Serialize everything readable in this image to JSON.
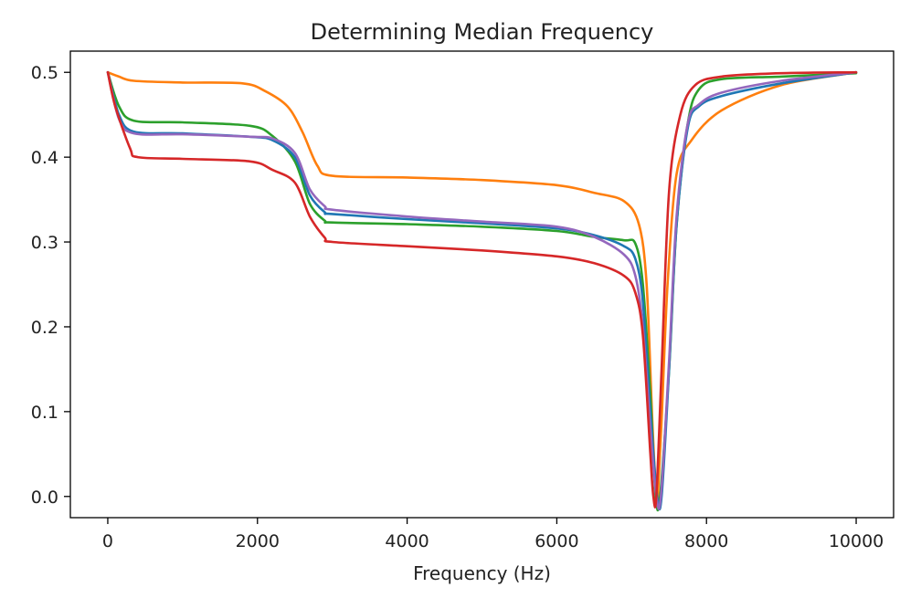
{
  "chart_data": {
    "type": "line",
    "title": "Determining Median Frequency",
    "xlabel": "Frequency (Hz)",
    "ylabel": "",
    "xlim": [
      -500,
      10500
    ],
    "ylim": [
      -0.025,
      0.525
    ],
    "xticks": [
      0,
      2000,
      4000,
      6000,
      8000,
      10000
    ],
    "xtick_labels": [
      "0",
      "2000",
      "4000",
      "6000",
      "8000",
      "10000"
    ],
    "yticks": [
      0.0,
      0.1,
      0.2,
      0.3,
      0.4,
      0.5
    ],
    "ytick_labels": [
      "0.0",
      "0.1",
      "0.2",
      "0.3",
      "0.4",
      "0.5"
    ],
    "grid": false,
    "legend": "none",
    "series": [
      {
        "color": "#ff7f0e",
        "x": [
          0,
          150,
          350,
          1000,
          1800,
          2100,
          2400,
          2600,
          2800,
          3000,
          4000,
          5000,
          6000,
          6500,
          6900,
          7100,
          7200,
          7280,
          7330,
          7350,
          7400,
          7480,
          7600,
          7800,
          8200,
          9000,
          10000
        ],
        "y": [
          0.5,
          0.495,
          0.49,
          0.488,
          0.487,
          0.478,
          0.46,
          0.43,
          0.39,
          0.378,
          0.376,
          0.373,
          0.367,
          0.358,
          0.348,
          0.32,
          0.25,
          0.08,
          0.0,
          0.0,
          0.09,
          0.25,
          0.38,
          0.42,
          0.455,
          0.485,
          0.5
        ]
      },
      {
        "color": "#2ca02c",
        "x": [
          0,
          150,
          350,
          1000,
          1900,
          2200,
          2500,
          2700,
          2900,
          3000,
          4000,
          5000,
          6000,
          6500,
          6900,
          7050,
          7150,
          7250,
          7320,
          7380,
          7500,
          7600,
          7750,
          7900,
          8200,
          9000,
          10000
        ],
        "y": [
          0.5,
          0.46,
          0.443,
          0.441,
          0.437,
          0.425,
          0.395,
          0.345,
          0.325,
          0.323,
          0.321,
          0.318,
          0.313,
          0.306,
          0.302,
          0.298,
          0.25,
          0.12,
          0.0,
          0.0,
          0.15,
          0.32,
          0.44,
          0.48,
          0.492,
          0.495,
          0.499
        ]
      },
      {
        "color": "#1f77b4",
        "x": [
          0,
          150,
          350,
          1000,
          1900,
          2200,
          2500,
          2700,
          2900,
          3000,
          4000,
          5000,
          6000,
          6500,
          6900,
          7050,
          7150,
          7250,
          7340,
          7400,
          7500,
          7600,
          7750,
          7900,
          8200,
          9000,
          10000
        ],
        "y": [
          0.5,
          0.45,
          0.43,
          0.428,
          0.424,
          0.42,
          0.4,
          0.355,
          0.335,
          0.333,
          0.327,
          0.322,
          0.316,
          0.308,
          0.295,
          0.28,
          0.23,
          0.1,
          0.0,
          0.0,
          0.15,
          0.32,
          0.435,
          0.46,
          0.472,
          0.487,
          0.5
        ]
      },
      {
        "color": "#9467bd",
        "x": [
          0,
          150,
          350,
          1000,
          1900,
          2200,
          2500,
          2700,
          2900,
          3000,
          4000,
          5000,
          6000,
          6500,
          6900,
          7050,
          7150,
          7250,
          7330,
          7390,
          7500,
          7600,
          7750,
          7900,
          8200,
          9000,
          10000
        ],
        "y": [
          0.5,
          0.445,
          0.428,
          0.427,
          0.424,
          0.422,
          0.405,
          0.362,
          0.342,
          0.338,
          0.33,
          0.324,
          0.318,
          0.306,
          0.285,
          0.26,
          0.2,
          0.08,
          0.0,
          0.0,
          0.16,
          0.33,
          0.44,
          0.462,
          0.476,
          0.49,
          0.5
        ]
      },
      {
        "color": "#d62728",
        "x": [
          0,
          100,
          300,
          400,
          1000,
          1900,
          2200,
          2500,
          2700,
          2900,
          3000,
          4000,
          5000,
          6000,
          6500,
          6900,
          7050,
          7150,
          7250,
          7290,
          7330,
          7400,
          7500,
          7650,
          7850,
          8200,
          9000,
          10000
        ],
        "y": [
          0.5,
          0.46,
          0.41,
          0.4,
          0.398,
          0.395,
          0.385,
          0.37,
          0.33,
          0.305,
          0.3,
          0.295,
          0.29,
          0.283,
          0.275,
          0.26,
          0.24,
          0.19,
          0.05,
          0.0,
          0.0,
          0.15,
          0.36,
          0.45,
          0.485,
          0.495,
          0.499,
          0.5
        ]
      }
    ]
  }
}
